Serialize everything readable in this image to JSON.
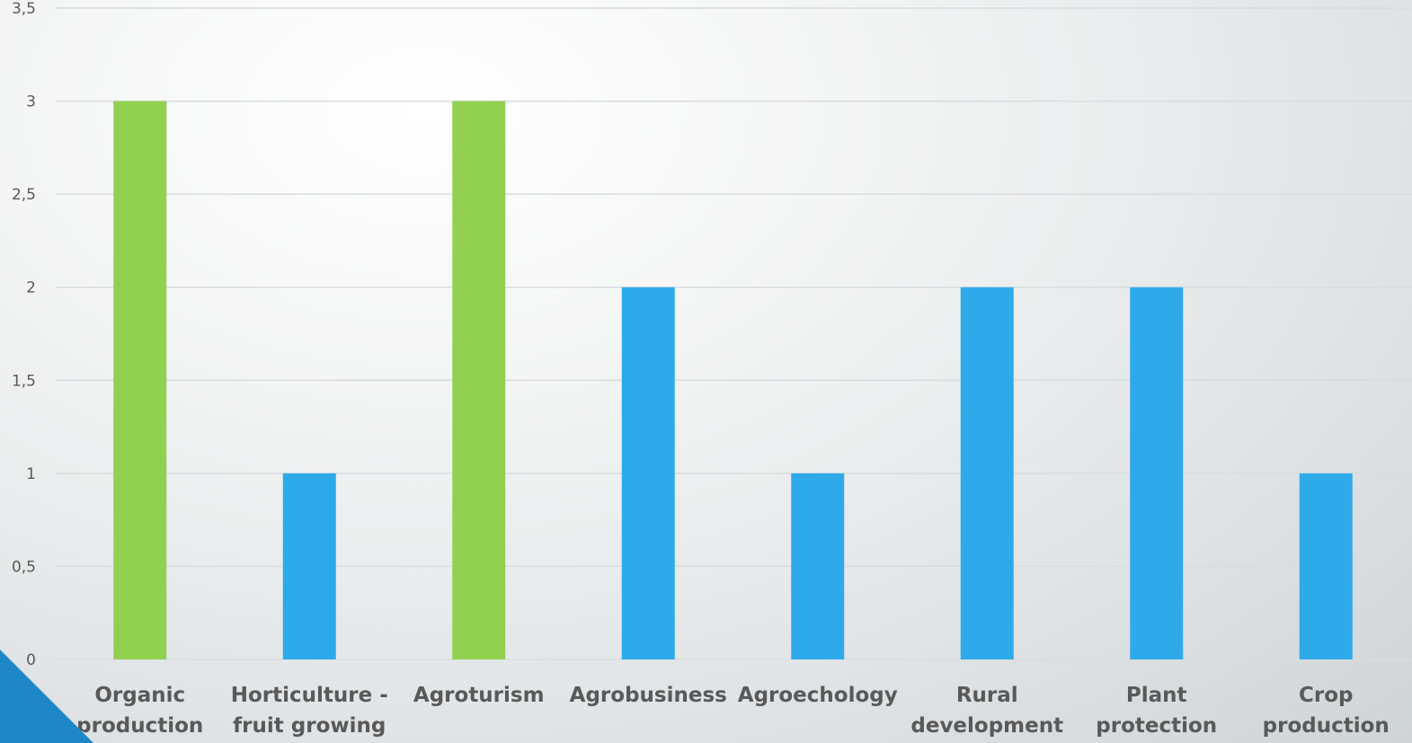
{
  "chart_data": {
    "type": "bar",
    "categories": [
      [
        "Organic",
        "production"
      ],
      [
        "Horticulture -",
        "fruit growing"
      ],
      [
        "Agroturism"
      ],
      [
        "Agrobusiness"
      ],
      [
        "Agroechology"
      ],
      [
        "Rural",
        "development"
      ],
      [
        "Plant",
        "protection"
      ],
      [
        "Crop",
        "production"
      ]
    ],
    "values": [
      3,
      1,
      3,
      2,
      1,
      2,
      2,
      1
    ],
    "bar_colors": [
      "#92d050",
      "#2eaaeb",
      "#92d050",
      "#2eaaeb",
      "#2eaaeb",
      "#2eaaeb",
      "#2eaaeb",
      "#2eaaeb"
    ],
    "ylim": [
      0,
      3.5
    ],
    "yticks": [
      0,
      0.5,
      1,
      1.5,
      2,
      2.5,
      3,
      3.5
    ],
    "ytick_labels": [
      "0",
      "0,5",
      "1",
      "1,5",
      "2",
      "2,5",
      "3",
      "3,5"
    ],
    "grid": true,
    "title": "",
    "xlabel": "",
    "ylabel": "",
    "gridline_color": "#d9dcdf",
    "accent_colors": {
      "green": "#92d050",
      "blue": "#2eaaeb",
      "corner": "#1f86c7"
    }
  }
}
